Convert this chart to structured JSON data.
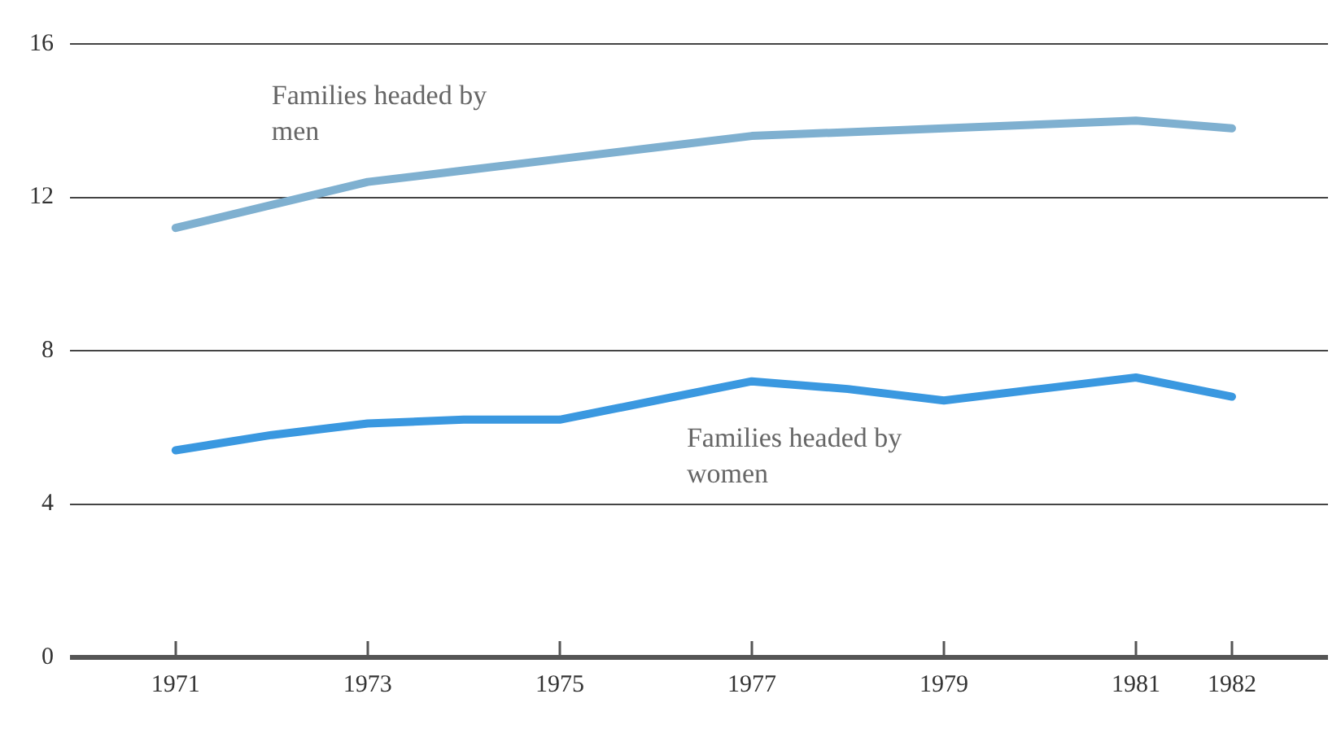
{
  "chart_data": {
    "type": "line",
    "x": [
      1971,
      1972,
      1973,
      1974,
      1975,
      1976,
      1977,
      1978,
      1979,
      1980,
      1981,
      1982
    ],
    "series": [
      {
        "name": "Families headed by men",
        "color": "#7fb0d0",
        "values": [
          11.2,
          11.8,
          12.4,
          12.7,
          13.0,
          13.3,
          13.6,
          13.7,
          13.8,
          13.9,
          14.0,
          13.8
        ]
      },
      {
        "name": "Families headed by women",
        "color": "#3a98e0",
        "values": [
          5.4,
          5.8,
          6.1,
          6.2,
          6.2,
          6.7,
          7.2,
          7.0,
          6.7,
          7.0,
          7.3,
          6.8
        ]
      }
    ],
    "xlim": [
      1969.9,
      1983.0
    ],
    "xticks": [
      1971,
      1973,
      1975,
      1977,
      1979,
      1981,
      1982
    ],
    "ylim": [
      0,
      16
    ],
    "yticks": [
      0,
      4,
      8,
      12,
      16
    ],
    "grid": "y",
    "legend": false,
    "marker": "none",
    "line_style": "solid"
  }
}
